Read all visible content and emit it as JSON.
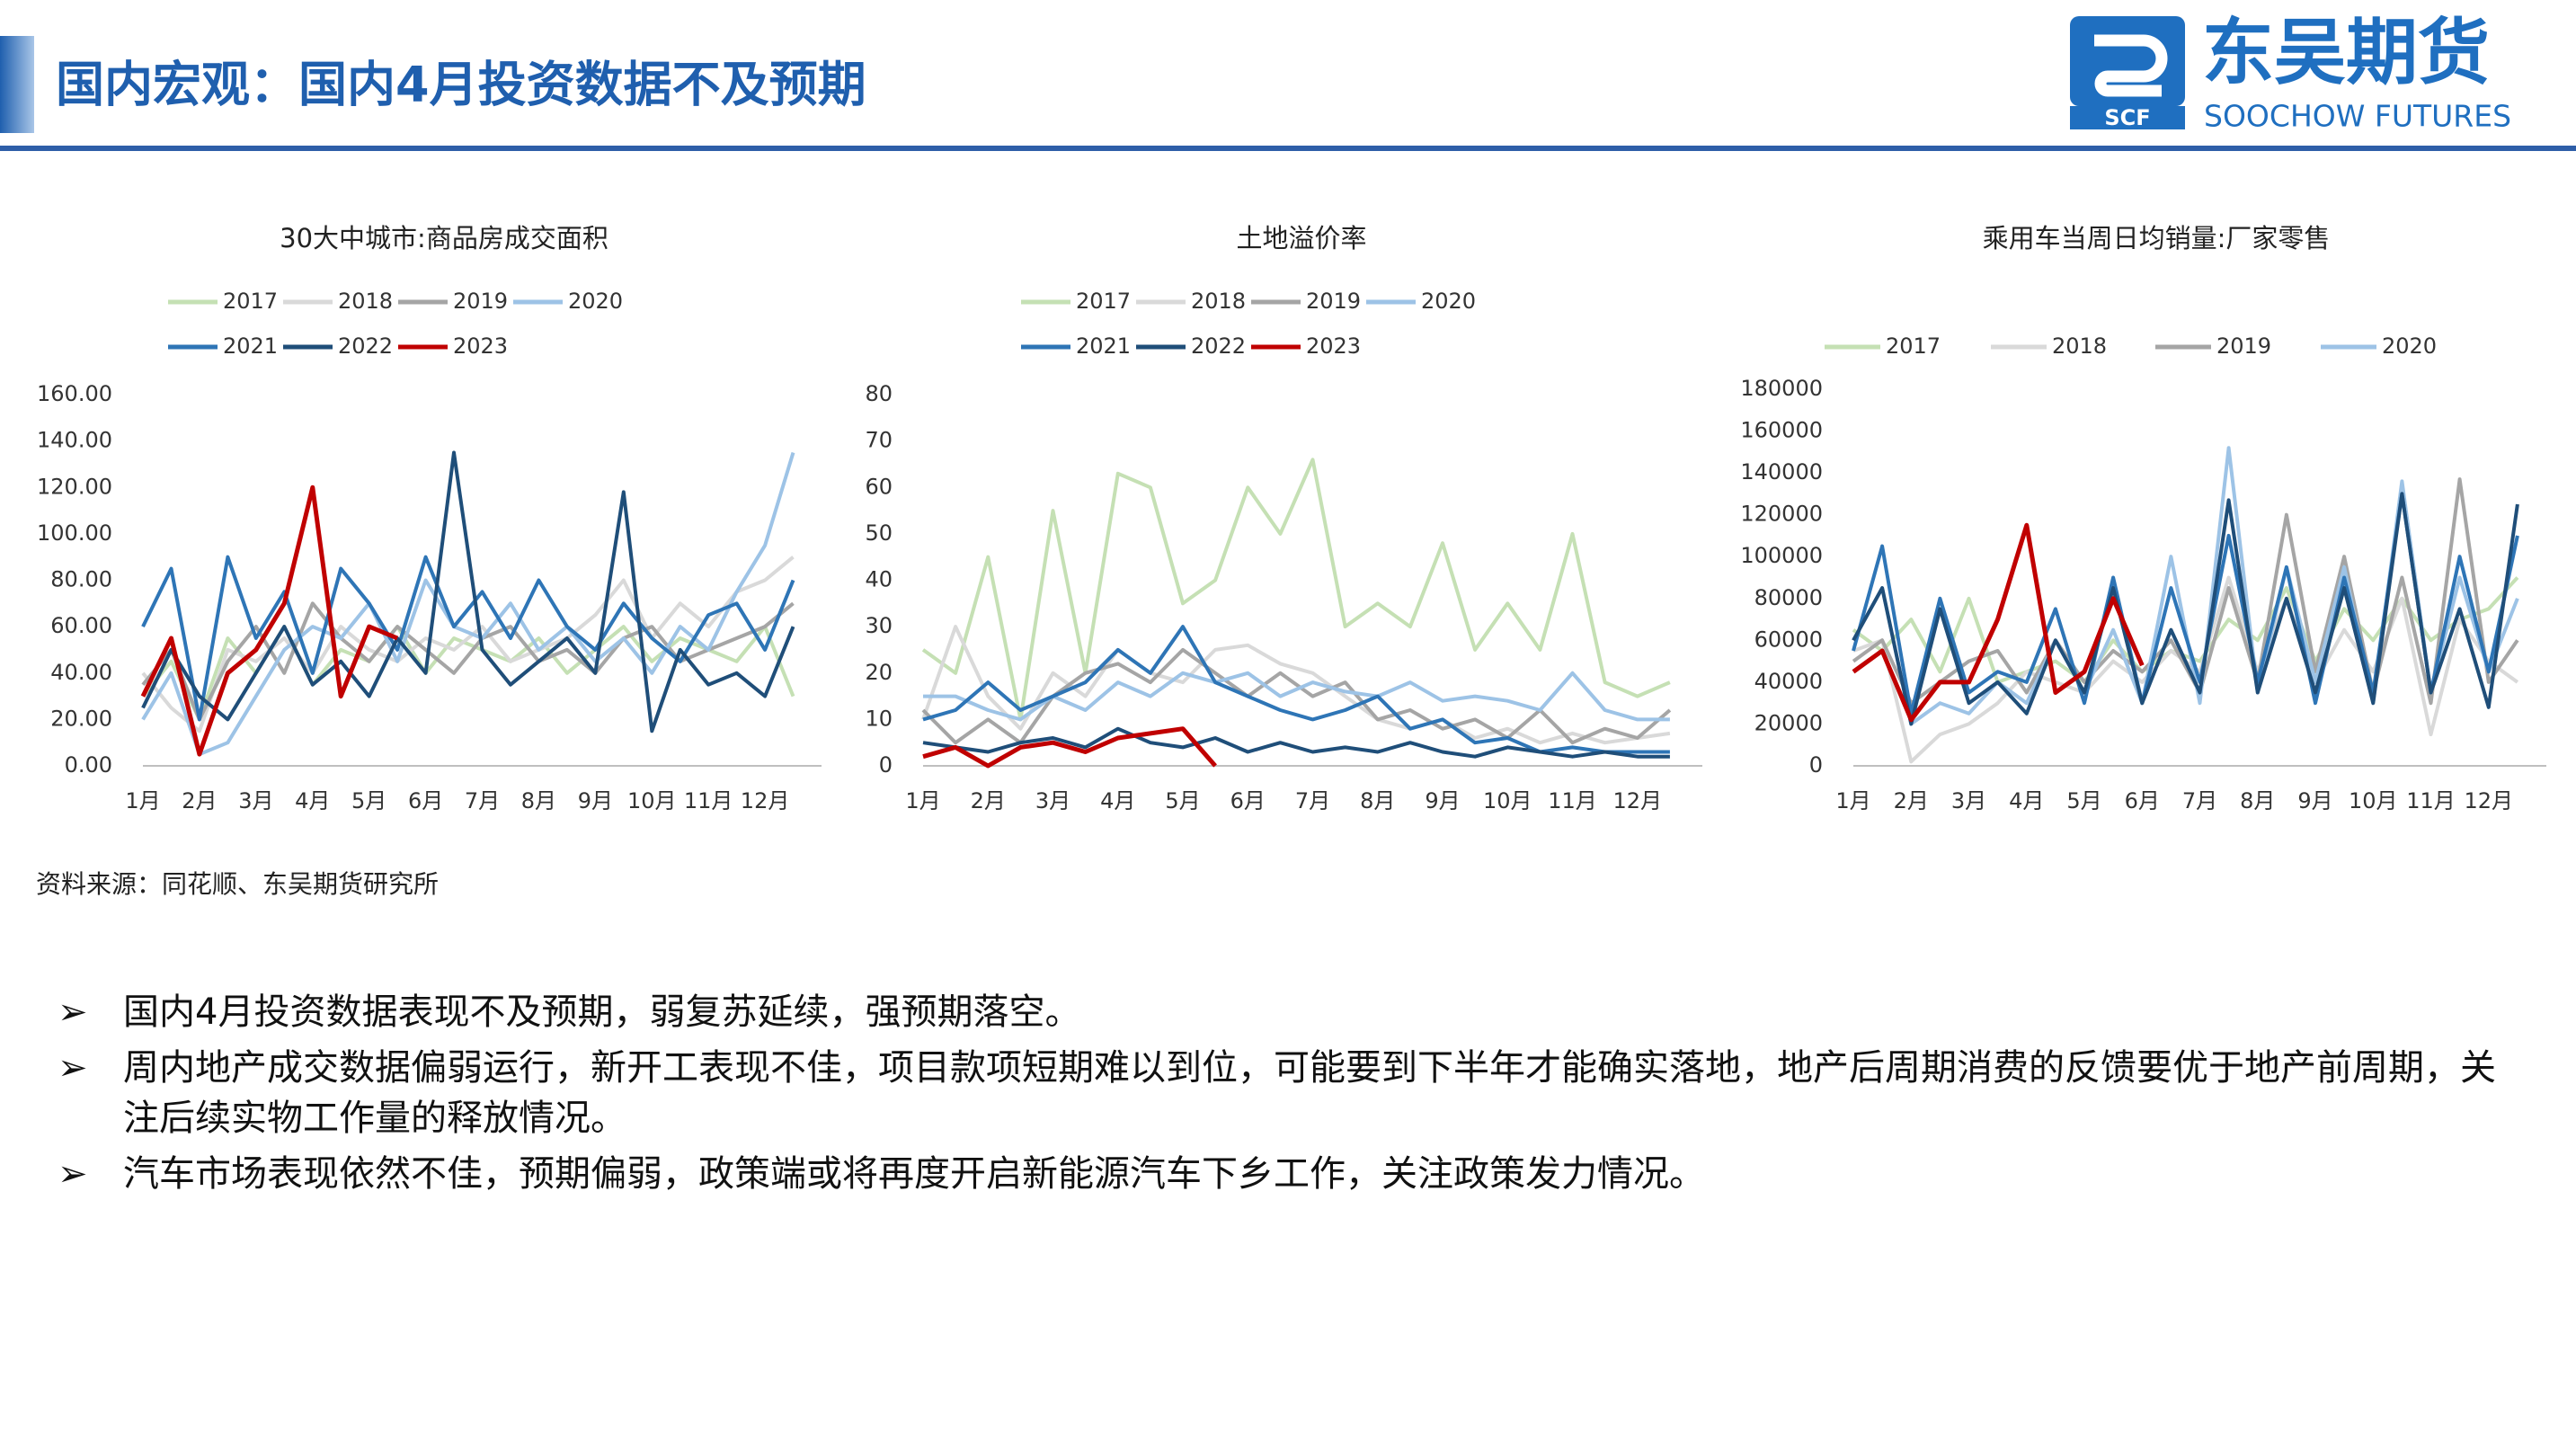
{
  "header": {
    "title": "国内宏观：国内4月投资数据不及预期",
    "logo_cn": "东吴期货",
    "logo_en": "SOOCHOW FUTURES",
    "logo_mark": "SCF"
  },
  "source": "资料来源：同花顺、东吴期货研究所",
  "bullets": [
    "国内4月投资数据表现不及预期，弱复苏延续，强预期落空。",
    "周内地产成交数据偏弱运行，新开工表现不佳，项目款项短期难以到位，可能要到下半年才能确实落地，地产后周期消费的反馈要优于地产前周期，关注后续实物工作量的释放情况。",
    "汽车市场表现依然不佳，预期偏弱，政策端或将再度开启新能源汽车下乡工作，关注政策发力情况。"
  ],
  "bullet_marker": "➢",
  "chart_data": [
    {
      "type": "line",
      "title": "30大中城市:商品房成交面积",
      "categories": [
        "1月",
        null,
        "2月",
        null,
        "3月",
        null,
        "4月",
        null,
        "5月",
        null,
        "6月",
        null,
        "7月",
        null,
        "8月",
        null,
        "9月",
        null,
        "10月",
        null,
        "11月",
        null,
        "12月",
        null
      ],
      "ylim": [
        0,
        160
      ],
      "yticks": [
        {
          "value": 0,
          "label": "0.00"
        },
        {
          "value": 20,
          "label": "20.00"
        },
        {
          "value": 40,
          "label": "40.00"
        },
        {
          "value": 60,
          "label": "60.00"
        },
        {
          "value": 80,
          "label": "80.00"
        },
        {
          "value": 100,
          "label": "100.00"
        },
        {
          "value": 120,
          "label": "120.00"
        },
        {
          "value": 140,
          "label": "140.00"
        },
        {
          "value": 160,
          "label": "160.00"
        }
      ],
      "series": [
        {
          "name": "2017",
          "color": "#c5e0b4",
          "values": [
            30,
            45,
            20,
            55,
            40,
            60,
            35,
            50,
            45,
            60,
            40,
            55,
            50,
            45,
            55,
            40,
            50,
            60,
            45,
            55,
            50,
            45,
            60,
            30
          ]
        },
        {
          "name": "2018",
          "color": "#d9d9d9",
          "values": [
            40,
            25,
            15,
            50,
            45,
            55,
            40,
            60,
            50,
            45,
            55,
            50,
            60,
            45,
            50,
            55,
            65,
            80,
            55,
            70,
            60,
            75,
            80,
            90
          ]
        },
        {
          "name": "2019",
          "color": "#a5a5a5",
          "values": [
            35,
            50,
            20,
            45,
            60,
            40,
            70,
            55,
            45,
            60,
            50,
            40,
            55,
            60,
            45,
            50,
            40,
            55,
            60,
            45,
            50,
            55,
            60,
            70
          ]
        },
        {
          "name": "2020",
          "color": "#9dc3e6",
          "values": [
            20,
            40,
            5,
            10,
            30,
            50,
            60,
            55,
            70,
            45,
            80,
            60,
            55,
            70,
            50,
            60,
            45,
            55,
            40,
            60,
            50,
            75,
            95,
            135
          ]
        },
        {
          "name": "2021",
          "color": "#2e75b6",
          "values": [
            60,
            85,
            20,
            90,
            55,
            75,
            40,
            85,
            70,
            50,
            90,
            60,
            75,
            55,
            80,
            60,
            50,
            70,
            55,
            45,
            65,
            70,
            50,
            80
          ]
        },
        {
          "name": "2022",
          "color": "#1f4e79",
          "values": [
            25,
            50,
            30,
            20,
            40,
            60,
            35,
            45,
            30,
            55,
            40,
            135,
            50,
            35,
            45,
            55,
            40,
            118,
            15,
            50,
            35,
            40,
            30,
            60
          ]
        },
        {
          "name": "2023",
          "color": "#c00000",
          "values": [
            30,
            55,
            5,
            40,
            50,
            70,
            120,
            30,
            60,
            55,
            null,
            null,
            null,
            null,
            null,
            null,
            null,
            null,
            null,
            null,
            null,
            null,
            null,
            null
          ]
        }
      ]
    },
    {
      "type": "line",
      "title": "土地溢价率",
      "categories": [
        "1月",
        null,
        "2月",
        null,
        "3月",
        null,
        "4月",
        null,
        "5月",
        null,
        "6月",
        null,
        "7月",
        null,
        "8月",
        null,
        "9月",
        null,
        "10月",
        null,
        "11月",
        null,
        "12月",
        null
      ],
      "ylim": [
        0,
        80
      ],
      "yticks": [
        0,
        10,
        20,
        30,
        40,
        50,
        60,
        70,
        80
      ],
      "series": [
        {
          "name": "2017",
          "color": "#c5e0b4",
          "values": [
            25,
            20,
            45,
            10,
            55,
            20,
            63,
            60,
            35,
            40,
            60,
            50,
            66,
            30,
            35,
            30,
            48,
            25,
            35,
            25,
            50,
            18,
            15,
            18
          ]
        },
        {
          "name": "2018",
          "color": "#d9d9d9",
          "values": [
            10,
            30,
            15,
            8,
            20,
            15,
            25,
            20,
            18,
            25,
            26,
            22,
            20,
            15,
            10,
            8,
            10,
            6,
            8,
            5,
            7,
            5,
            6,
            7
          ]
        },
        {
          "name": "2019",
          "color": "#a5a5a5",
          "values": [
            12,
            5,
            10,
            5,
            15,
            20,
            22,
            18,
            25,
            20,
            15,
            20,
            15,
            18,
            10,
            12,
            8,
            10,
            6,
            12,
            5,
            8,
            6,
            12
          ]
        },
        {
          "name": "2020",
          "color": "#9dc3e6",
          "values": [
            15,
            15,
            12,
            10,
            15,
            12,
            18,
            15,
            20,
            18,
            20,
            15,
            18,
            16,
            15,
            18,
            14,
            15,
            14,
            12,
            20,
            12,
            10,
            10
          ]
        },
        {
          "name": "2021",
          "color": "#2e75b6",
          "values": [
            10,
            12,
            18,
            12,
            15,
            18,
            25,
            20,
            30,
            18,
            15,
            12,
            10,
            12,
            15,
            8,
            10,
            5,
            6,
            3,
            4,
            3,
            3,
            3
          ]
        },
        {
          "name": "2022",
          "color": "#1f4e79",
          "values": [
            5,
            4,
            3,
            5,
            6,
            4,
            8,
            5,
            4,
            6,
            3,
            5,
            3,
            4,
            3,
            5,
            3,
            2,
            4,
            3,
            2,
            3,
            2,
            2
          ]
        },
        {
          "name": "2023",
          "color": "#c00000",
          "values": [
            2,
            4,
            0,
            4,
            5,
            3,
            6,
            7,
            8,
            0,
            null,
            null,
            null,
            null,
            null,
            null,
            null,
            null,
            null,
            null,
            null,
            null,
            null,
            null
          ]
        }
      ]
    },
    {
      "type": "line",
      "title": "乘用车当周日均销量:厂家零售",
      "categories": [
        "1月",
        null,
        "2月",
        null,
        "3月",
        null,
        "4月",
        null,
        "5月",
        null,
        "6月",
        null,
        "7月",
        null,
        "8月",
        null,
        "9月",
        null,
        "10月",
        null,
        "11月",
        null,
        "12月",
        null
      ],
      "ylim": [
        0,
        180000
      ],
      "yticks": [
        0,
        20000,
        40000,
        60000,
        80000,
        100000,
        120000,
        140000,
        160000,
        180000
      ],
      "series": [
        {
          "name": "2017",
          "color": "#c5e0b4",
          "values": [
            65000,
            55000,
            70000,
            45000,
            80000,
            40000,
            45000,
            50000,
            40000,
            60000,
            45000,
            55000,
            50000,
            70000,
            60000,
            85000,
            50000,
            75000,
            60000,
            80000,
            60000,
            70000,
            75000,
            90000
          ]
        },
        {
          "name": "2018",
          "color": "#d9d9d9",
          "values": [
            55000,
            60000,
            2000,
            15000,
            20000,
            30000,
            45000,
            40000,
            35000,
            50000,
            40000,
            55000,
            45000,
            90000,
            45000,
            80000,
            40000,
            65000,
            45000,
            80000,
            15000,
            70000,
            50000,
            40000
          ]
        },
        {
          "name": "2019",
          "color": "#a5a5a5",
          "values": [
            50000,
            60000,
            30000,
            40000,
            50000,
            55000,
            35000,
            60000,
            40000,
            55000,
            45000,
            60000,
            35000,
            85000,
            40000,
            120000,
            45000,
            100000,
            35000,
            90000,
            30000,
            137000,
            40000,
            60000
          ]
        },
        {
          "name": "2020",
          "color": "#9dc3e6",
          "values": [
            60000,
            85000,
            20000,
            30000,
            25000,
            40000,
            30000,
            60000,
            35000,
            65000,
            30000,
            100000,
            30000,
            152000,
            35000,
            95000,
            40000,
            95000,
            30000,
            136000,
            35000,
            90000,
            45000,
            80000
          ]
        },
        {
          "color": "#2e75b6",
          "values": [
            55000,
            105000,
            25000,
            80000,
            35000,
            45000,
            40000,
            75000,
            30000,
            90000,
            30000,
            85000,
            40000,
            110000,
            40000,
            95000,
            30000,
            90000,
            35000,
            130000,
            35000,
            100000,
            45000,
            110000
          ]
        },
        {
          "color": "#1f4e79",
          "values": [
            60000,
            85000,
            20000,
            75000,
            30000,
            40000,
            25000,
            60000,
            35000,
            85000,
            30000,
            65000,
            35000,
            127000,
            35000,
            80000,
            35000,
            85000,
            30000,
            130000,
            35000,
            75000,
            28000,
            125000
          ]
        },
        {
          "color": "#c00000",
          "values": [
            45000,
            55000,
            22000,
            40000,
            40000,
            70000,
            115000,
            35000,
            45000,
            80000,
            48000,
            null,
            null,
            null,
            null,
            null,
            null,
            null,
            null,
            null,
            null,
            null,
            null,
            null
          ]
        }
      ]
    }
  ]
}
